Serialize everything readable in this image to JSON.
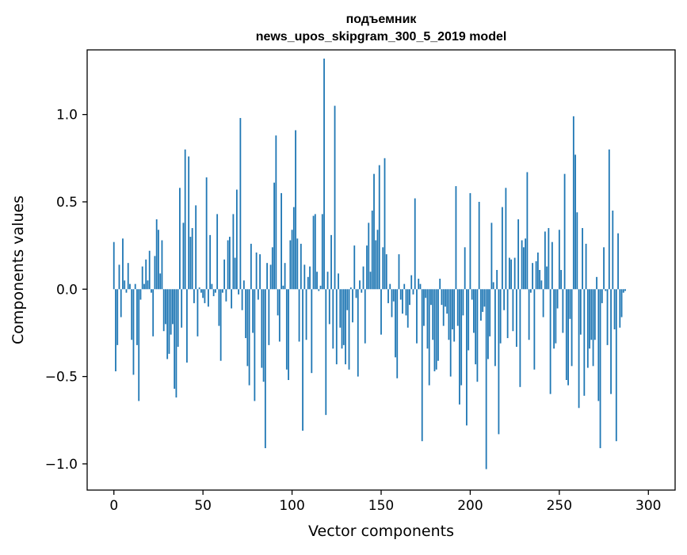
{
  "chart_data": {
    "type": "bar",
    "title": "подъемник",
    "subtitle": "news_upos_skipgram_300_5_2019 model",
    "xlabel": "Vector components",
    "ylabel": "Components values",
    "xlim": [
      -15,
      315
    ],
    "ylim": [
      -1.15,
      1.37
    ],
    "xticks": [
      0,
      50,
      100,
      150,
      200,
      250,
      300
    ],
    "yticks": [
      -1.0,
      -0.5,
      0.0,
      0.5,
      1.0
    ],
    "xtick_labels": [
      "0",
      "50",
      "100",
      "150",
      "200",
      "250",
      "300"
    ],
    "ytick_labels": [
      "−1.0",
      "−0.5",
      "0.0",
      "0.5",
      "1.0"
    ],
    "grid": false,
    "bar_color": "#1f77b4",
    "values": [
      0.27,
      -0.47,
      -0.32,
      0.14,
      -0.16,
      0.29,
      0.05,
      -0.02,
      0.15,
      0.03,
      -0.29,
      -0.49,
      0.03,
      -0.32,
      -0.64,
      -0.06,
      0.13,
      0.03,
      0.17,
      0.05,
      0.22,
      -0.02,
      -0.27,
      0.19,
      0.4,
      0.34,
      0.09,
      0.28,
      -0.24,
      -0.2,
      -0.4,
      -0.37,
      -0.26,
      -0.2,
      -0.57,
      -0.62,
      -0.33,
      0.58,
      -0.22,
      0.38,
      0.8,
      -0.42,
      0.76,
      0.3,
      0.35,
      -0.08,
      0.48,
      -0.27,
      0.01,
      -0.02,
      -0.05,
      -0.08,
      0.64,
      -0.1,
      0.31,
      0.03,
      -0.04,
      -0.02,
      0.43,
      -0.21,
      -0.41,
      -0.02,
      0.17,
      -0.07,
      0.28,
      0.3,
      -0.11,
      0.43,
      0.18,
      0.57,
      -0.03,
      0.98,
      -0.12,
      0.05,
      -0.28,
      -0.44,
      -0.55,
      0.26,
      -0.25,
      -0.64,
      0.21,
      -0.06,
      0.2,
      -0.45,
      -0.53,
      -0.91,
      0.15,
      -0.32,
      0.14,
      0.24,
      0.61,
      0.88,
      -0.15,
      -0.3,
      0.55,
      0.02,
      0.15,
      -0.46,
      -0.52,
      0.28,
      0.34,
      0.47,
      0.91,
      0.29,
      -0.3,
      0.26,
      -0.81,
      0.14,
      -0.29,
      0.07,
      0.13,
      -0.48,
      0.42,
      0.43,
      0.1,
      -0.01,
      0.02,
      0.43,
      1.32,
      -0.72,
      0.1,
      -0.2,
      0.31,
      -0.34,
      1.05,
      -0.43,
      0.09,
      -0.22,
      -0.34,
      -0.32,
      -0.43,
      -0.12,
      -0.46,
      0.01,
      -0.19,
      0.25,
      -0.05,
      -0.5,
      0.05,
      -0.02,
      0.13,
      -0.31,
      0.25,
      0.38,
      0.1,
      0.45,
      0.66,
      0.28,
      0.34,
      0.71,
      -0.26,
      0.24,
      0.75,
      0.2,
      -0.08,
      0.03,
      -0.16,
      -0.07,
      -0.39,
      -0.51,
      0.2,
      -0.06,
      -0.14,
      0.03,
      -0.15,
      -0.22,
      -0.09,
      0.08,
      -0.03,
      0.52,
      -0.31,
      0.06,
      0.03,
      -0.87,
      -0.21,
      -0.05,
      -0.34,
      -0.55,
      -0.09,
      -0.29,
      -0.47,
      -0.46,
      -0.41,
      0.06,
      -0.09,
      -0.21,
      -0.1,
      -0.14,
      -0.29,
      -0.5,
      -0.23,
      -0.3,
      0.59,
      -0.21,
      -0.66,
      -0.55,
      -0.15,
      0.24,
      -0.78,
      -0.35,
      0.55,
      -0.06,
      -0.25,
      -0.43,
      -0.53,
      0.5,
      -0.18,
      -0.13,
      -0.1,
      -1.03,
      -0.4,
      -0.27,
      0.38,
      0.04,
      -0.44,
      0.11,
      -0.83,
      -0.31,
      0.47,
      -0.12,
      0.58,
      -0.28,
      0.18,
      0.17,
      -0.24,
      0.18,
      -0.33,
      0.4,
      -0.56,
      0.28,
      0.24,
      0.29,
      0.67,
      -0.29,
      -0.02,
      0.15,
      -0.46,
      0.16,
      0.21,
      0.11,
      0.05,
      -0.16,
      0.33,
      0.13,
      0.35,
      -0.6,
      0.27,
      -0.34,
      -0.31,
      -0.11,
      0.34,
      0.11,
      -0.25,
      0.66,
      -0.52,
      -0.55,
      -0.17,
      -0.44,
      0.99,
      0.77,
      0.44,
      -0.68,
      -0.26,
      0.35,
      -0.61,
      0.26,
      -0.45,
      -0.34,
      -0.29,
      -0.44,
      -0.29,
      0.07,
      -0.64,
      -0.91,
      -0.08,
      0.24,
      -0.01,
      -0.32,
      0.8,
      -0.6,
      0.45,
      -0.23,
      -0.87,
      0.32,
      -0.22,
      -0.16,
      -0.02,
      -0.01
    ],
    "axis_labels_shown": true
  }
}
